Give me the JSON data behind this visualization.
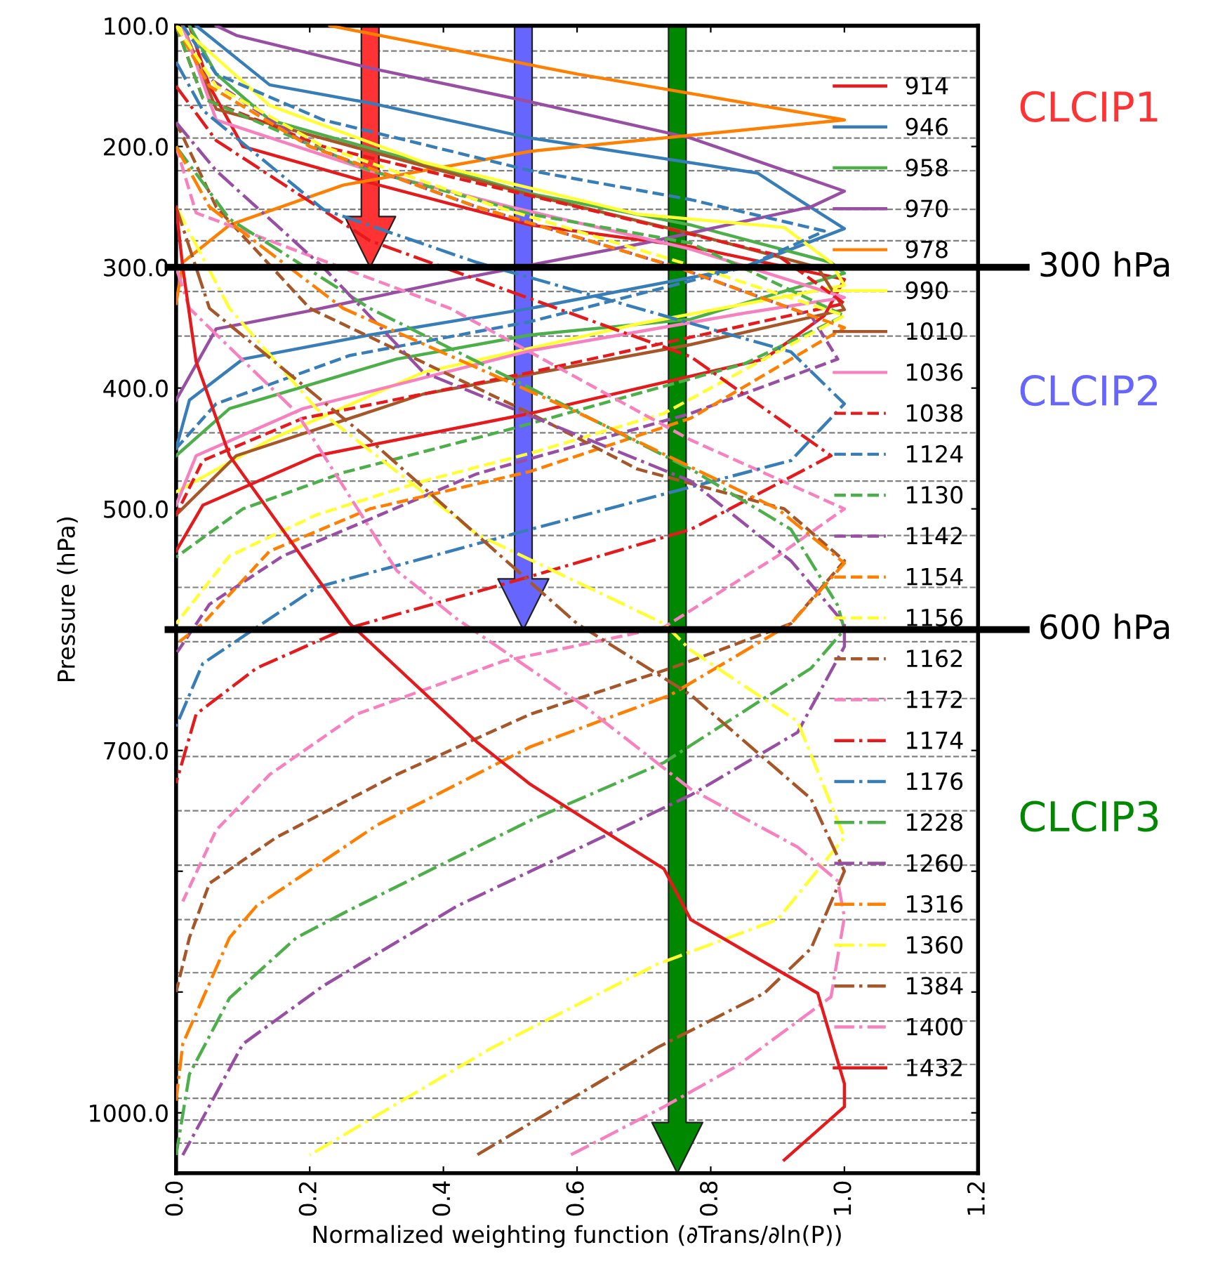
{
  "chart_data": {
    "type": "line",
    "xlabel": "Normalized weighting function (∂Trans/∂ln(P))",
    "ylabel": "Pressure (hPa)",
    "xlim": [
      0,
      1.2
    ],
    "ylim": [
      1050,
      100
    ],
    "xticks": [
      {
        "value": 0,
        "label": "0.0"
      },
      {
        "value": 0.2,
        "label": "0.2"
      },
      {
        "value": 0.4,
        "label": "0.4"
      },
      {
        "value": 0.6,
        "label": "0.6"
      },
      {
        "value": 0.8,
        "label": "0.8"
      },
      {
        "value": 1.0,
        "label": "1.0"
      },
      {
        "value": 1.2,
        "label": "1.2"
      }
    ],
    "yticks": [
      {
        "value": 100,
        "label": "100.0"
      },
      {
        "value": 200,
        "label": "200.0"
      },
      {
        "value": 300,
        "label": "300.0"
      },
      {
        "value": 400,
        "label": "400.0"
      },
      {
        "value": 500,
        "label": "500.0"
      },
      {
        "value": 600,
        "label": null
      },
      {
        "value": 700,
        "label": "700.0"
      },
      {
        "value": 800,
        "label": null
      },
      {
        "value": 900,
        "label": null
      },
      {
        "value": 1000,
        "label": "1000.0"
      }
    ],
    "grid": false,
    "legend": "top right",
    "marker": "none",
    "ref_lines": [
      {
        "axis": "y",
        "value": 121,
        "color": "#808080",
        "line_style": "dashed"
      },
      {
        "axis": "y",
        "value": 143,
        "color": "#808080",
        "line_style": "dashed"
      },
      {
        "axis": "y",
        "value": 166,
        "color": "#808080",
        "line_style": "dashed"
      },
      {
        "axis": "y",
        "value": 193,
        "color": "#808080",
        "line_style": "dashed"
      },
      {
        "axis": "y",
        "value": 220,
        "color": "#808080",
        "line_style": "dashed"
      },
      {
        "axis": "y",
        "value": 252,
        "color": "#808080",
        "line_style": "dashed"
      },
      {
        "axis": "y",
        "value": 278,
        "color": "#808080",
        "line_style": "dashed"
      },
      {
        "axis": "y",
        "value": 320,
        "color": "#808080",
        "line_style": "dashed"
      },
      {
        "axis": "y",
        "value": 357,
        "color": "#808080",
        "line_style": "dashed"
      },
      {
        "axis": "y",
        "value": 437,
        "color": "#808080",
        "line_style": "dashed"
      },
      {
        "axis": "y",
        "value": 477,
        "color": "#808080",
        "line_style": "dashed"
      },
      {
        "axis": "y",
        "value": 522,
        "color": "#808080",
        "line_style": "dashed"
      },
      {
        "axis": "y",
        "value": 565,
        "color": "#808080",
        "line_style": "dashed"
      },
      {
        "axis": "y",
        "value": 610,
        "color": "#808080",
        "line_style": "dashed"
      },
      {
        "axis": "y",
        "value": 657,
        "color": "#808080",
        "line_style": "dashed"
      },
      {
        "axis": "y",
        "value": 705,
        "color": "#808080",
        "line_style": "dashed"
      },
      {
        "axis": "y",
        "value": 750,
        "color": "#808080",
        "line_style": "dashed"
      },
      {
        "axis": "y",
        "value": 795,
        "color": "#808080",
        "line_style": "dashed"
      },
      {
        "axis": "y",
        "value": 840,
        "color": "#808080",
        "line_style": "dashed"
      },
      {
        "axis": "y",
        "value": 884,
        "color": "#808080",
        "line_style": "dashed"
      },
      {
        "axis": "y",
        "value": 924,
        "color": "#808080",
        "line_style": "dashed"
      },
      {
        "axis": "y",
        "value": 960,
        "color": "#808080",
        "line_style": "dashed"
      },
      {
        "axis": "y",
        "value": 988,
        "color": "#808080",
        "line_style": "dashed"
      },
      {
        "axis": "y",
        "value": 1006,
        "color": "#808080",
        "line_style": "dashed"
      },
      {
        "axis": "y",
        "value": 1025,
        "color": "#808080",
        "line_style": "dashed"
      },
      {
        "axis": "y",
        "value": 300,
        "label": "300 hPa",
        "color": "#000000",
        "line_style": "solid"
      },
      {
        "axis": "y",
        "value": 600,
        "label": "600 hPa",
        "color": "#000000",
        "line_style": "solid"
      }
    ],
    "annotations": [
      "CLCIP1",
      "CLCIP2",
      "CLCIP3"
    ],
    "series": [
      {
        "name": "914",
        "color": "#e41a1c",
        "line_style": "solid",
        "values": [
          100,
          150,
          200,
          230,
          265,
          283,
          310,
          340,
          376,
          421,
          456,
          497,
          535
        ],
        "x": [
          0.02,
          0.05,
          0.1,
          0.29,
          0.53,
          0.77,
          1.0,
          0.97,
          0.88,
          0.53,
          0.21,
          0.04,
          0.0
        ]
      },
      {
        "name": "946",
        "color": "#377eb8",
        "line_style": "solid",
        "values": [
          100,
          149,
          164,
          193,
          222,
          240,
          268,
          300,
          334,
          356,
          376,
          410,
          450
        ],
        "x": [
          0.03,
          0.14,
          0.29,
          0.53,
          0.87,
          0.92,
          1.0,
          0.85,
          0.53,
          0.29,
          0.1,
          0.02,
          0.0
        ]
      },
      {
        "name": "958",
        "color": "#4daf4a",
        "line_style": "solid",
        "values": [
          100,
          140,
          178,
          239,
          265,
          296,
          305,
          343,
          356,
          376,
          417,
          456
        ],
        "x": [
          0.02,
          0.06,
          0.14,
          0.53,
          0.77,
          0.98,
          1.0,
          0.77,
          0.53,
          0.33,
          0.08,
          0.0
        ]
      },
      {
        "name": "970",
        "color": "#984ea3",
        "line_style": "solid",
        "values": [
          100,
          108,
          135,
          163,
          193,
          237,
          250,
          280,
          310,
          336,
          351,
          410
        ],
        "x": [
          0.06,
          0.09,
          0.29,
          0.53,
          0.77,
          1.0,
          0.95,
          0.7,
          0.42,
          0.2,
          0.06,
          0.0
        ]
      },
      {
        "name": "978",
        "color": "#ff7f00",
        "line_style": "solid",
        "values": [
          100,
          140,
          178,
          204,
          232,
          265,
          296,
          330
        ],
        "x": [
          0.23,
          0.6,
          1.0,
          0.53,
          0.25,
          0.08,
          0.01,
          0.0
        ]
      },
      {
        "name": "990",
        "color": "#ffff33",
        "line_style": "solid",
        "values": [
          100,
          107,
          166,
          213,
          256,
          267,
          296,
          315,
          347,
          387,
          443,
          486
        ],
        "x": [
          0.0,
          0.02,
          0.14,
          0.37,
          0.69,
          0.91,
          0.98,
          1.0,
          0.69,
          0.37,
          0.14,
          0.0
        ]
      },
      {
        "name": "1010",
        "color": "#a65628",
        "line_style": "solid",
        "values": [
          100,
          169,
          204,
          240,
          272,
          300,
          335,
          364,
          405,
          456,
          505
        ],
        "x": [
          0.01,
          0.06,
          0.29,
          0.53,
          0.77,
          0.96,
          1.0,
          0.77,
          0.37,
          0.09,
          0.0
        ]
      },
      {
        "name": "1036",
        "color": "#f781bf",
        "line_style": "solid",
        "values": [
          100,
          178,
          220,
          250,
          285,
          325,
          338,
          369,
          417,
          456,
          497
        ],
        "x": [
          0.01,
          0.06,
          0.29,
          0.5,
          0.77,
          1.0,
          0.85,
          0.53,
          0.19,
          0.03,
          0.0
        ]
      },
      {
        "name": "1038",
        "color": "#e41a1c",
        "line_style": "dashed",
        "values": [
          100,
          160,
          200,
          250,
          290,
          330,
          387,
          425,
          460,
          505
        ],
        "x": [
          0.0,
          0.04,
          0.22,
          0.6,
          0.9,
          1.0,
          0.53,
          0.19,
          0.04,
          0.0
        ]
      },
      {
        "name": "1124",
        "color": "#377eb8",
        "line_style": "dashed",
        "values": [
          100,
          140,
          178,
          220,
          244,
          270,
          300,
          345,
          373,
          413,
          450
        ],
        "x": [
          0.01,
          0.06,
          0.22,
          0.53,
          0.77,
          0.97,
          0.85,
          0.53,
          0.26,
          0.06,
          0.0
        ]
      },
      {
        "name": "1130",
        "color": "#4daf4a",
        "line_style": "dashed",
        "values": [
          100,
          160,
          220,
          256,
          280,
          340,
          380,
          434,
          470,
          500,
          540
        ],
        "x": [
          0.0,
          0.04,
          0.29,
          0.53,
          0.77,
          1.0,
          0.85,
          0.5,
          0.25,
          0.1,
          0.0
        ]
      },
      {
        "name": "1142",
        "color": "#984ea3",
        "line_style": "dashed",
        "values": [
          100,
          140,
          200,
          250,
          300,
          340,
          376,
          421,
          471,
          539,
          579,
          620
        ],
        "x": [
          0.0,
          0.04,
          0.2,
          0.45,
          0.75,
          0.95,
          0.99,
          0.77,
          0.45,
          0.16,
          0.05,
          0.0
        ]
      },
      {
        "name": "1154",
        "color": "#ff7f00",
        "line_style": "dashed",
        "values": [
          100,
          150,
          200,
          250,
          300,
          350,
          425,
          469,
          500,
          535,
          595,
          612
        ],
        "x": [
          0.0,
          0.05,
          0.2,
          0.45,
          0.75,
          1.0,
          0.77,
          0.53,
          0.29,
          0.14,
          0.04,
          0.0
        ]
      },
      {
        "name": "1156",
        "color": "#ffff33",
        "line_style": "dashed",
        "values": [
          100,
          150,
          200,
          250,
          300,
          340,
          421,
          454,
          477,
          505,
          539,
          595
        ],
        "x": [
          0.0,
          0.06,
          0.22,
          0.48,
          0.78,
          1.0,
          0.73,
          0.53,
          0.37,
          0.21,
          0.08,
          0.0
        ]
      },
      {
        "name": "1162",
        "color": "#a65628",
        "line_style": "dashed",
        "values": [
          180,
          250,
          334,
          421,
          467,
          500,
          543,
          595,
          632,
          670,
          720,
          772,
          810,
          855,
          900
        ],
        "x": [
          0.0,
          0.06,
          0.2,
          0.53,
          0.69,
          0.91,
          1.0,
          0.92,
          0.74,
          0.53,
          0.33,
          0.15,
          0.05,
          0.02,
          0.0
        ]
      },
      {
        "name": "1172",
        "color": "#f781bf",
        "line_style": "dashed",
        "values": [
          200,
          255,
          334,
          443,
          500,
          539,
          598,
          626,
          670,
          720,
          766,
          825
        ],
        "x": [
          0.0,
          0.03,
          0.41,
          0.77,
          1.0,
          0.9,
          0.73,
          0.49,
          0.27,
          0.14,
          0.06,
          0.01
        ]
      },
      {
        "name": "1174",
        "color": "#e41a1c",
        "line_style": "dashdot",
        "values": [
          150,
          195,
          278,
          374,
          456,
          517,
          556,
          600,
          632,
          670,
          727
        ],
        "x": [
          0.0,
          0.06,
          0.29,
          0.77,
          0.98,
          0.77,
          0.53,
          0.25,
          0.12,
          0.03,
          0.0
        ]
      },
      {
        "name": "1176",
        "color": "#377eb8",
        "line_style": "dashdot",
        "values": [
          130,
          170,
          252,
          296,
          370,
          413,
          460,
          517,
          565,
          628,
          680
        ],
        "x": [
          0.0,
          0.04,
          0.22,
          0.45,
          0.92,
          1.0,
          0.92,
          0.53,
          0.21,
          0.04,
          0.0
        ]
      },
      {
        "name": "1228",
        "color": "#4daf4a",
        "line_style": "dashdot",
        "values": [
          200,
          260,
          334,
          400,
          467,
          517,
          580,
          600,
          632,
          710,
          758,
          832,
          855,
          905,
          968,
          1035
        ],
        "x": [
          0.0,
          0.08,
          0.29,
          0.53,
          0.77,
          0.92,
          0.99,
          1.0,
          0.95,
          0.73,
          0.53,
          0.26,
          0.18,
          0.08,
          0.02,
          0.0
        ]
      },
      {
        "name": "1260",
        "color": "#984ea3",
        "line_style": "dashdot",
        "values": [
          180,
          220,
          300,
          387,
          477,
          543,
          595,
          614,
          685,
          737,
          829,
          895,
          943,
          1035
        ],
        "x": [
          0.0,
          0.06,
          0.22,
          0.37,
          0.77,
          0.92,
          1.0,
          1.0,
          0.93,
          0.77,
          0.42,
          0.22,
          0.1,
          0.01
        ]
      },
      {
        "name": "1316",
        "color": "#ff7f00",
        "line_style": "dashdot",
        "values": [
          200,
          250,
          334,
          420,
          500,
          545,
          595,
          654,
          697,
          762,
          829,
          855,
          943,
          990
        ],
        "x": [
          0.0,
          0.05,
          0.25,
          0.6,
          0.9,
          1.0,
          0.92,
          0.74,
          0.53,
          0.3,
          0.12,
          0.08,
          0.01,
          0.0
        ]
      },
      {
        "name": "1360",
        "color": "#ffff33",
        "line_style": "dashdot",
        "values": [
          250,
          334,
          417,
          521,
          595,
          617,
          676,
          772,
          840,
          877,
          947,
          1035
        ],
        "x": [
          0.0,
          0.08,
          0.21,
          0.45,
          0.73,
          0.77,
          0.93,
          1.0,
          0.9,
          0.72,
          0.47,
          0.2
        ]
      },
      {
        "name": "1384",
        "color": "#a65628",
        "line_style": "dashdot",
        "values": [
          250,
          334,
          443,
          595,
          654,
          740,
          800,
          864,
          901,
          946,
          1035
        ],
        "x": [
          0.0,
          0.05,
          0.29,
          0.6,
          0.77,
          0.95,
          1.0,
          0.95,
          0.88,
          0.72,
          0.45
        ]
      },
      {
        "name": "1400",
        "color": "#f781bf",
        "line_style": "dashdot",
        "values": [
          300,
          334,
          420,
          551,
          591,
          663,
          732,
          780,
          808,
          838,
          904,
          961,
          995,
          1035
        ],
        "x": [
          0.0,
          0.02,
          0.18,
          0.33,
          0.42,
          0.61,
          0.77,
          0.93,
          0.99,
          1.0,
          0.98,
          0.84,
          0.73,
          0.59
        ]
      },
      {
        "name": "1432",
        "color": "#e41a1c",
        "line_style": "solid",
        "values": [
          250,
          300,
          378,
          456,
          595,
          693,
          728,
          798,
          840,
          901,
          976,
          995,
          1039
        ],
        "x": [
          0.0,
          0.01,
          0.03,
          0.08,
          0.26,
          0.45,
          0.53,
          0.73,
          0.77,
          0.96,
          1.0,
          1.0,
          0.91
        ]
      }
    ]
  }
}
